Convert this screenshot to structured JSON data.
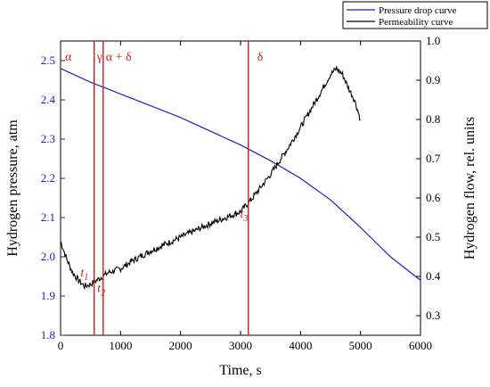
{
  "chart_data": {
    "type": "line",
    "xlabel": "Time, s",
    "ylabel_left": "Hydrogen pressure, atm",
    "ylabel_right": "Hydrogen flow, rel. units",
    "xlim": [
      0,
      6000
    ],
    "ylim_left": [
      1.8,
      2.55
    ],
    "ylim_right": [
      0.25,
      1.0
    ],
    "x_ticks": [
      "0",
      "1000",
      "2000",
      "3000",
      "4000",
      "5000",
      "6000"
    ],
    "y_left_ticks": [
      "1.8",
      "1.9",
      "2.0",
      "2.1",
      "2.2",
      "2.3",
      "2.4",
      "2.5"
    ],
    "y_right_ticks": [
      "0.3",
      "0.4",
      "0.5",
      "0.6",
      "0.7",
      "0.8",
      "0.9",
      "1.0"
    ],
    "legend": {
      "placement": "top-right-outside",
      "entries": [
        {
          "name": "Pressure drop curve",
          "color": "#1f1fbf"
        },
        {
          "name": "Permeability curve",
          "color": "#000000"
        }
      ]
    },
    "series": [
      {
        "name": "Pressure drop curve",
        "axis": "left",
        "color": "#1f1fbf",
        "x": [
          0,
          500,
          1000,
          1500,
          2000,
          2500,
          3000,
          3500,
          4000,
          4500,
          5000,
          5500,
          6000
        ],
        "values": [
          2.48,
          2.445,
          2.415,
          2.385,
          2.355,
          2.32,
          2.285,
          2.245,
          2.2,
          2.145,
          2.075,
          2.0,
          1.94
        ]
      },
      {
        "name": "Permeability curve",
        "axis": "right",
        "color": "#000000",
        "x": [
          0,
          100,
          200,
          300,
          400,
          500,
          600,
          700,
          800,
          1000,
          1200,
          1500,
          2000,
          2500,
          3000,
          3200,
          3500,
          3800,
          4000,
          4300,
          4500,
          4600,
          4700,
          4800,
          4900,
          5000
        ],
        "values": [
          0.49,
          0.445,
          0.41,
          0.39,
          0.375,
          0.38,
          0.39,
          0.4,
          0.41,
          0.42,
          0.44,
          0.465,
          0.5,
          0.535,
          0.565,
          0.6,
          0.66,
          0.73,
          0.78,
          0.86,
          0.915,
          0.93,
          0.915,
          0.88,
          0.85,
          0.8
        ]
      }
    ],
    "vlines": [
      {
        "x": 560,
        "label": "γ"
      },
      {
        "x": 710,
        "label": "α + δ"
      },
      {
        "x": 3130,
        "label": "δ"
      }
    ],
    "phase_label_alpha": "α",
    "point_labels": [
      {
        "text": "t",
        "sub": "1",
        "x": 540,
        "y_right": 0.4
      },
      {
        "text": "t",
        "sub": "2",
        "x": 820,
        "y_right": 0.36
      },
      {
        "text": "t",
        "sub": "3",
        "x": 3200,
        "y_right": 0.55
      }
    ],
    "grid": false
  }
}
